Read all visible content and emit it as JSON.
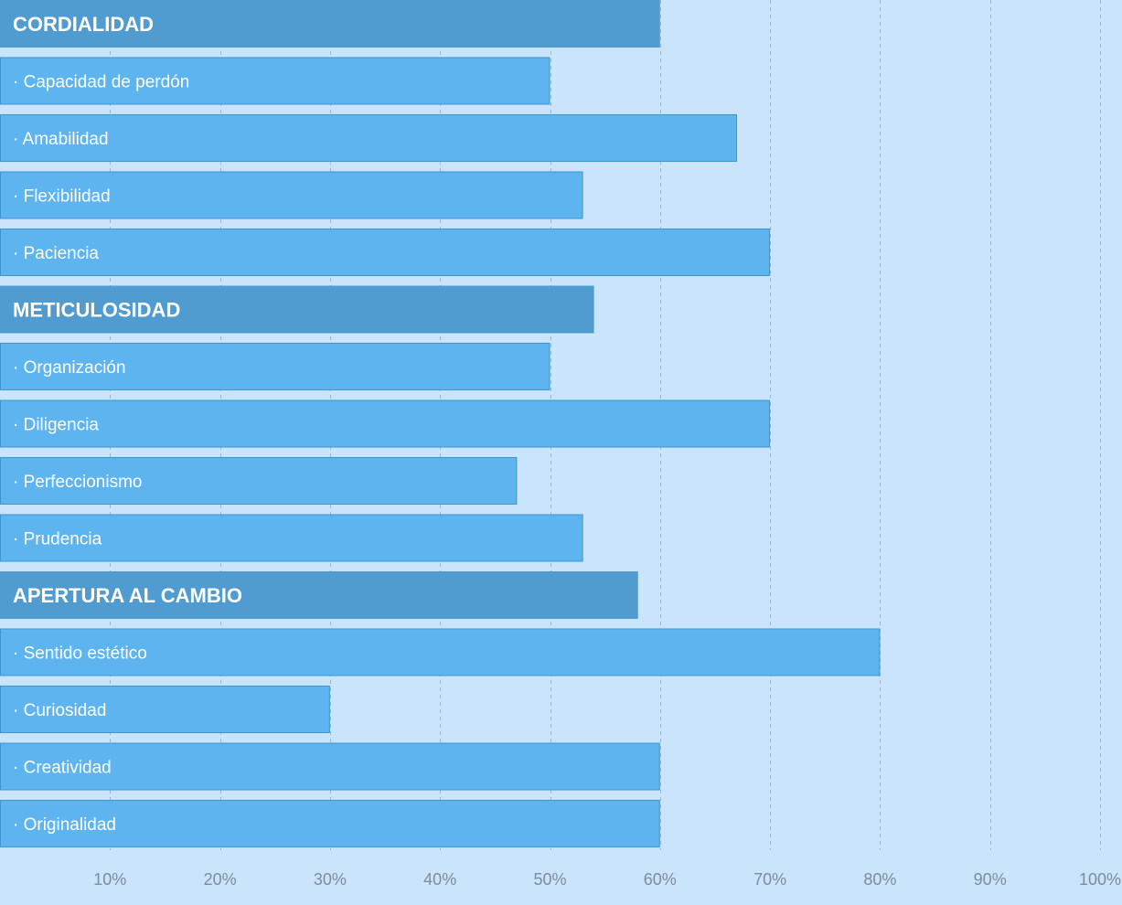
{
  "chart_data": {
    "type": "bar",
    "orientation": "horizontal",
    "title": "",
    "xlabel": "",
    "ylabel": "",
    "xlim": [
      0,
      100
    ],
    "grid": true,
    "legend": "none",
    "colors": {
      "background": "#cae4fc",
      "header_bar": "#509bd0",
      "item_bar": "#5db4ef",
      "grid": "#98b6cf",
      "tick_text": "#7d8c99"
    },
    "x_ticks": [
      10,
      20,
      30,
      40,
      50,
      60,
      70,
      80,
      90,
      100
    ],
    "x_tick_labels": [
      "10%",
      "20%",
      "30%",
      "40%",
      "50%",
      "60%",
      "70%",
      "80%",
      "90%",
      "100%"
    ],
    "bars": [
      {
        "label": "CORDIALIDAD",
        "value": 60,
        "kind": "header"
      },
      {
        "label": "· Capacidad de perdón",
        "value": 50,
        "kind": "item"
      },
      {
        "label": "· Amabilidad",
        "value": 67,
        "kind": "item"
      },
      {
        "label": "· Flexibilidad",
        "value": 53,
        "kind": "item"
      },
      {
        "label": "· Paciencia",
        "value": 70,
        "kind": "item"
      },
      {
        "label": "METICULOSIDAD",
        "value": 54,
        "kind": "header"
      },
      {
        "label": "· Organización",
        "value": 50,
        "kind": "item"
      },
      {
        "label": "· Diligencia",
        "value": 70,
        "kind": "item"
      },
      {
        "label": "· Perfeccionismo",
        "value": 47,
        "kind": "item"
      },
      {
        "label": "· Prudencia",
        "value": 53,
        "kind": "item"
      },
      {
        "label": "APERTURA AL CAMBIO",
        "value": 58,
        "kind": "header"
      },
      {
        "label": "· Sentido estético",
        "value": 80,
        "kind": "item"
      },
      {
        "label": "· Curiosidad",
        "value": 30,
        "kind": "item"
      },
      {
        "label": "· Creatividad",
        "value": 60,
        "kind": "item"
      },
      {
        "label": "· Originalidad",
        "value": 60,
        "kind": "item"
      }
    ]
  }
}
